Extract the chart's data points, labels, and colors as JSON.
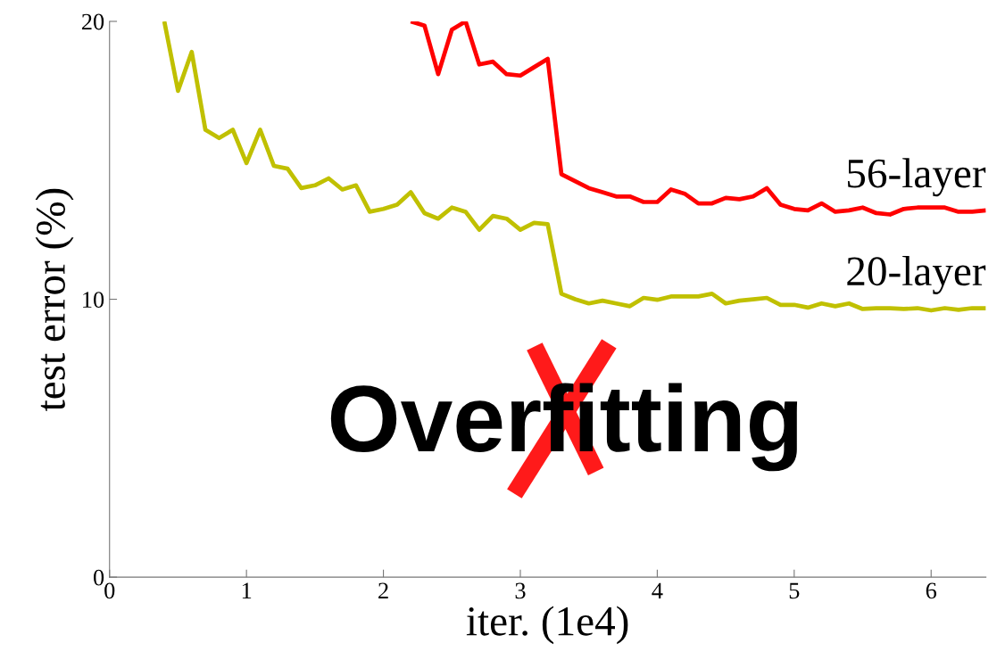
{
  "chart_data": {
    "type": "line",
    "xlabel": "iter. (1e4)",
    "ylabel": "test error (%)",
    "xlim": [
      0,
      6.4
    ],
    "xticks": [
      0,
      1,
      2,
      3,
      4,
      5,
      6
    ],
    "ylim": [
      0,
      20
    ],
    "yticks": [
      0,
      10,
      20
    ],
    "grid": false,
    "legend": false,
    "marker": "none",
    "line_style": "solid",
    "annotations": [
      "Overfitting"
    ],
    "series": [
      {
        "name": "56-layer",
        "color": "#ff0000",
        "x": [
          2.2,
          2.3,
          2.4,
          2.5,
          2.6,
          2.7,
          2.8,
          2.9,
          3.0,
          3.1,
          3.2,
          3.3,
          3.4,
          3.5,
          3.6,
          3.7,
          3.8,
          3.9,
          4.0,
          4.1,
          4.2,
          4.3,
          4.4,
          4.5,
          4.6,
          4.7,
          4.8,
          4.9,
          5.0,
          5.1,
          5.2,
          5.3,
          5.4,
          5.5,
          5.6,
          5.7,
          5.8,
          5.9,
          6.0,
          6.1,
          6.2,
          6.3,
          6.4
        ],
        "values": [
          20.0,
          19.85,
          18.1,
          19.7,
          20.0,
          18.45,
          18.55,
          18.1,
          18.05,
          18.35,
          18.65,
          14.5,
          14.25,
          14.0,
          13.85,
          13.7,
          13.7,
          13.5,
          13.5,
          13.95,
          13.8,
          13.45,
          13.45,
          13.65,
          13.6,
          13.7,
          14.0,
          13.4,
          13.25,
          13.2,
          13.45,
          13.15,
          13.2,
          13.3,
          13.1,
          13.05,
          13.25,
          13.3,
          13.3,
          13.3,
          13.15,
          13.15,
          13.2
        ]
      },
      {
        "name": "20-layer",
        "color": "#c0c000",
        "x": [
          0.4,
          0.5,
          0.6,
          0.7,
          0.8,
          0.9,
          1.0,
          1.1,
          1.2,
          1.3,
          1.4,
          1.5,
          1.6,
          1.7,
          1.8,
          1.9,
          2.0,
          2.1,
          2.2,
          2.3,
          2.4,
          2.5,
          2.6,
          2.7,
          2.8,
          2.9,
          3.0,
          3.1,
          3.2,
          3.3,
          3.4,
          3.5,
          3.6,
          3.7,
          3.8,
          3.9,
          4.0,
          4.1,
          4.2,
          4.3,
          4.4,
          4.5,
          4.6,
          4.7,
          4.8,
          4.9,
          5.0,
          5.1,
          5.2,
          5.3,
          5.4,
          5.5,
          5.6,
          5.7,
          5.8,
          5.9,
          6.0,
          6.1,
          6.2,
          6.3,
          6.4
        ],
        "values": [
          20.0,
          17.5,
          18.9,
          16.1,
          15.8,
          16.1,
          14.9,
          16.1,
          14.8,
          14.7,
          14.0,
          14.1,
          14.35,
          13.95,
          14.1,
          13.15,
          13.25,
          13.4,
          13.85,
          13.1,
          12.9,
          13.3,
          13.15,
          12.5,
          13.0,
          12.9,
          12.5,
          12.75,
          12.7,
          10.2,
          10.0,
          9.85,
          9.95,
          9.85,
          9.75,
          10.05,
          9.98,
          10.1,
          10.1,
          10.1,
          10.2,
          9.85,
          9.95,
          10.0,
          10.05,
          9.8,
          9.8,
          9.7,
          9.85,
          9.75,
          9.85,
          9.65,
          9.68,
          9.68,
          9.65,
          9.68,
          9.6,
          9.68,
          9.62,
          9.68,
          9.68
        ]
      }
    ]
  }
}
